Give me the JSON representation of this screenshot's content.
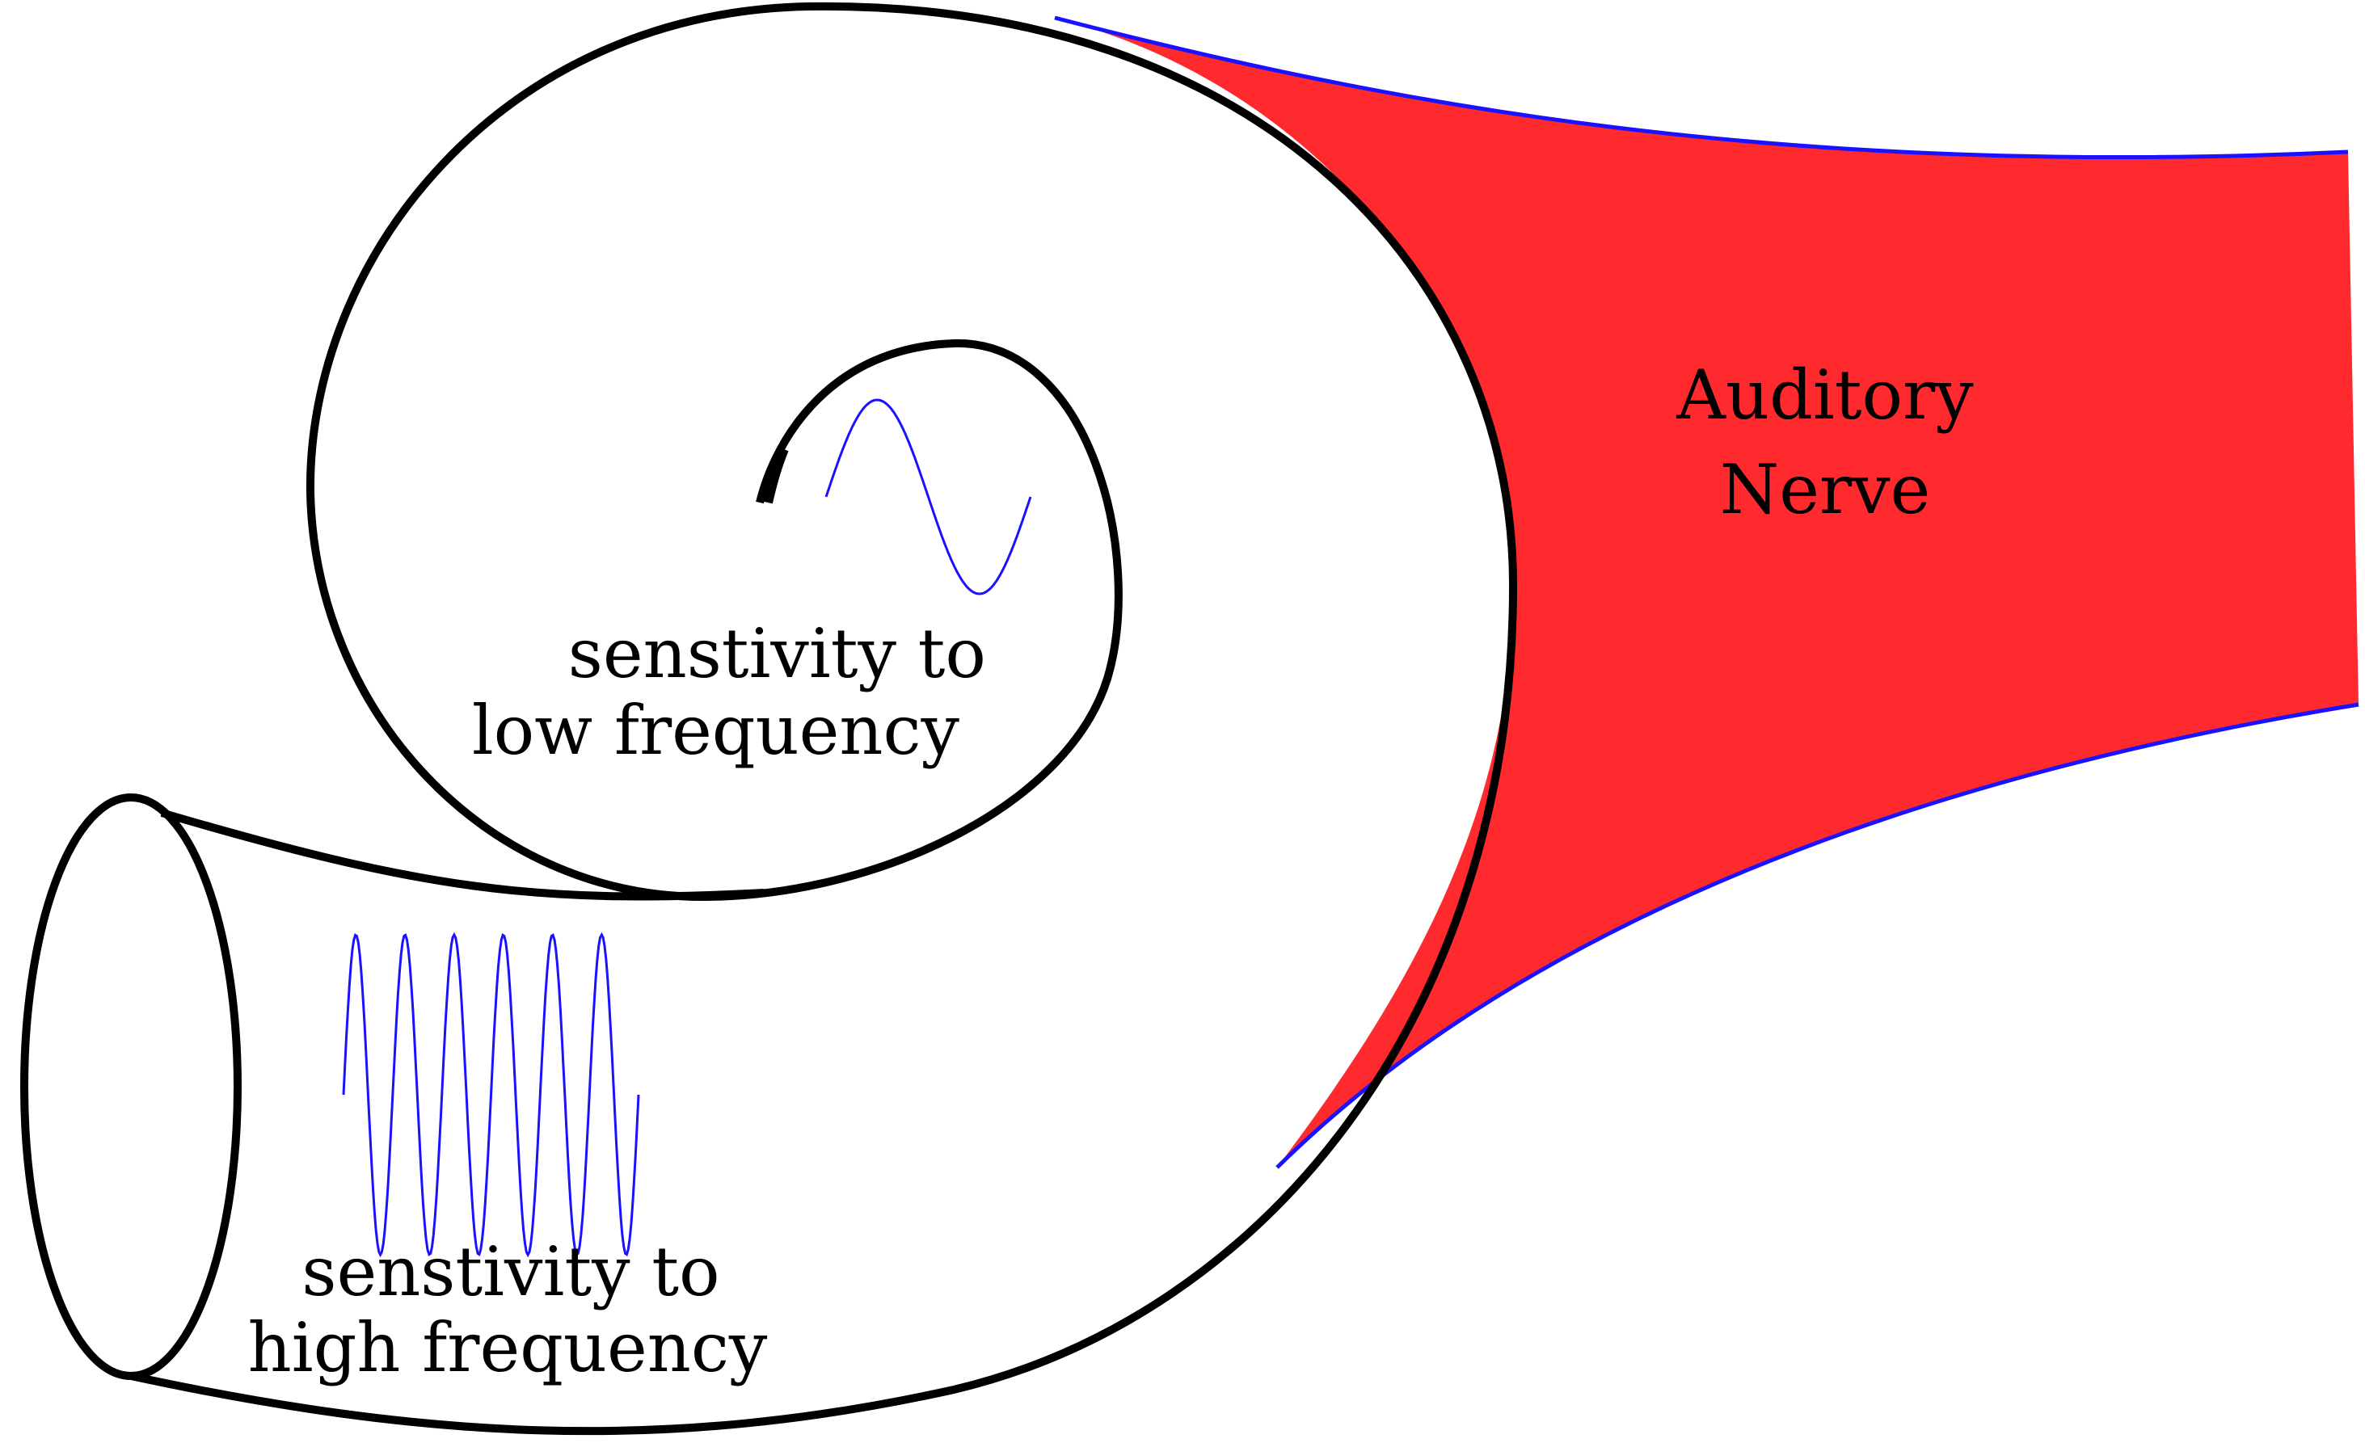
{
  "labels": {
    "nerve_line1": "Auditory",
    "nerve_line2": "Nerve",
    "low_line1": "senstivity to",
    "low_line2": "low frequency",
    "high_line1": "senstivity to",
    "high_line2": "high frequency"
  },
  "colors": {
    "nerve_fill": "#ff2a2e",
    "nerve_edge": "#1a12ff",
    "wave": "#1a12ff",
    "outline": "#000000"
  },
  "waves": {
    "low_frequency_cycles": 1,
    "high_frequency_cycles": 6
  }
}
